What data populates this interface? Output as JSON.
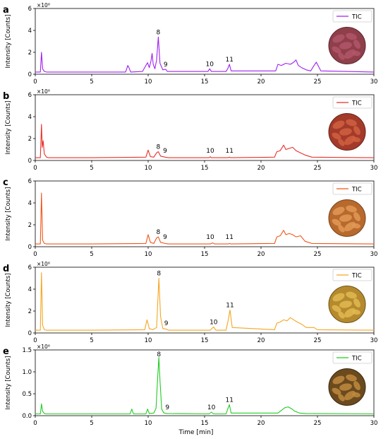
{
  "figure": {
    "xlabel": "Time [min]",
    "ylabel": "Intensity [Counts]"
  },
  "chart_data": [
    {
      "panel": "a",
      "type": "line",
      "legend": "TIC",
      "color": "#a020f0",
      "scale_label": "×10⁶",
      "ylim": [
        0,
        6
      ],
      "yticks": [
        0,
        2,
        4,
        6
      ],
      "xlim": [
        0,
        30
      ],
      "xticks": [
        0,
        5,
        10,
        15,
        20,
        25,
        30
      ],
      "baseline": 0.2,
      "grid": false,
      "legend_position": "top-right",
      "x": [
        0.0,
        0.45,
        0.55,
        0.65,
        0.8,
        1.0,
        5.0,
        8.0,
        8.2,
        8.3,
        8.45,
        9.5,
        9.8,
        9.95,
        10.1,
        10.25,
        10.35,
        10.45,
        10.6,
        10.75,
        10.9,
        11.05,
        11.3,
        11.55,
        11.7,
        15.3,
        15.45,
        15.6,
        16.9,
        17.05,
        17.2,
        17.35,
        21.3,
        21.5,
        21.8,
        22.2,
        22.6,
        22.9,
        23.1,
        23.3,
        23.6,
        24.0,
        24.4,
        24.7,
        24.9,
        25.3,
        30.0
      ],
      "values": [
        0.2,
        0.2,
        2.0,
        0.5,
        0.25,
        0.2,
        0.2,
        0.2,
        0.8,
        0.6,
        0.2,
        0.25,
        0.8,
        1.05,
        0.6,
        1.2,
        1.9,
        0.9,
        0.5,
        1.3,
        3.4,
        1.0,
        0.4,
        0.45,
        0.25,
        0.25,
        0.5,
        0.25,
        0.25,
        0.5,
        0.9,
        0.3,
        0.3,
        0.9,
        0.8,
        1.0,
        0.9,
        1.1,
        1.3,
        0.8,
        0.6,
        0.4,
        0.3,
        0.8,
        1.1,
        0.3,
        0.2
      ],
      "annotations": [
        {
          "label": "8",
          "x": 10.9,
          "y": 3.4
        },
        {
          "label": "9",
          "x": 11.55,
          "y": 0.45
        },
        {
          "label": "10",
          "x": 15.45,
          "y": 0.5
        },
        {
          "label": "11",
          "x": 17.2,
          "y": 0.9
        }
      ],
      "photo": {
        "fill": "#8f3f4a",
        "item": "#b2566a",
        "rim": "#5b2530"
      }
    },
    {
      "panel": "b",
      "type": "line",
      "legend": "TIC",
      "color": "#e8302a",
      "scale_label": "×10⁶",
      "ylim": [
        0,
        6
      ],
      "yticks": [
        0,
        2,
        4,
        6
      ],
      "xlim": [
        0,
        30
      ],
      "xticks": [
        0,
        5,
        10,
        15,
        20,
        25,
        30
      ],
      "baseline": 0.25,
      "grid": false,
      "legend_position": "top-right",
      "x": [
        0.0,
        0.45,
        0.55,
        0.62,
        0.7,
        0.8,
        1.0,
        1.2,
        5.0,
        9.8,
        10.0,
        10.2,
        10.5,
        10.75,
        10.9,
        11.1,
        11.5,
        11.8,
        15.4,
        15.5,
        15.6,
        17.1,
        17.2,
        17.3,
        21.2,
        21.4,
        21.7,
        22.0,
        22.2,
        22.5,
        22.8,
        23.1,
        23.5,
        23.9,
        24.5,
        30.0
      ],
      "values": [
        0.25,
        0.25,
        3.3,
        1.2,
        1.8,
        0.6,
        0.3,
        0.25,
        0.25,
        0.3,
        0.95,
        0.35,
        0.3,
        0.7,
        0.8,
        0.4,
        0.3,
        0.25,
        0.25,
        0.35,
        0.25,
        0.25,
        0.3,
        0.25,
        0.3,
        0.8,
        0.9,
        1.4,
        1.0,
        1.1,
        1.2,
        0.9,
        0.7,
        0.5,
        0.3,
        0.25
      ],
      "annotations": [
        {
          "label": "8",
          "x": 10.9,
          "y": 0.8
        },
        {
          "label": "9",
          "x": 11.5,
          "y": 0.45
        },
        {
          "label": "10",
          "x": 15.5,
          "y": 0.45
        },
        {
          "label": "11",
          "x": 17.2,
          "y": 0.45
        }
      ],
      "photo": {
        "fill": "#a33a2a",
        "item": "#d0603f",
        "rim": "#6a2418"
      }
    },
    {
      "panel": "c",
      "type": "line",
      "legend": "TIC",
      "color": "#f0561a",
      "scale_label": "",
      "ylim": [
        0,
        6
      ],
      "yticks": [
        0,
        2,
        4,
        6
      ],
      "xlim": [
        0,
        30
      ],
      "xticks": [
        0,
        5,
        10,
        15,
        20,
        25,
        30
      ],
      "baseline": 0.25,
      "grid": false,
      "legend_position": "top-right",
      "x": [
        0.0,
        0.45,
        0.55,
        0.65,
        0.8,
        1.0,
        5.0,
        9.8,
        10.0,
        10.2,
        10.5,
        10.75,
        10.9,
        11.1,
        11.5,
        11.8,
        15.5,
        15.7,
        15.9,
        17.1,
        17.2,
        17.3,
        21.2,
        21.4,
        21.7,
        22.0,
        22.2,
        22.5,
        22.8,
        23.1,
        23.5,
        23.9,
        24.5,
        30.0
      ],
      "values": [
        0.25,
        0.25,
        4.9,
        0.6,
        0.3,
        0.25,
        0.25,
        0.3,
        1.1,
        0.4,
        0.3,
        0.8,
        0.9,
        0.4,
        0.3,
        0.25,
        0.25,
        0.35,
        0.25,
        0.25,
        0.3,
        0.25,
        0.3,
        0.9,
        1.0,
        1.5,
        1.1,
        1.2,
        1.1,
        0.9,
        1.0,
        0.5,
        0.3,
        0.25
      ],
      "annotations": [
        {
          "label": "8",
          "x": 10.9,
          "y": 0.9
        },
        {
          "label": "9",
          "x": 11.5,
          "y": 0.45
        },
        {
          "label": "10",
          "x": 15.5,
          "y": 0.45
        },
        {
          "label": "11",
          "x": 17.2,
          "y": 0.45
        }
      ],
      "photo": {
        "fill": "#b8692e",
        "item": "#e09a55",
        "rim": "#7a4318"
      }
    },
    {
      "panel": "d",
      "type": "line",
      "legend": "TIC",
      "color": "#f5a623",
      "scale_label": "×10⁶",
      "ylim": [
        0,
        6
      ],
      "yticks": [
        0,
        2,
        4,
        6
      ],
      "xlim": [
        0,
        30
      ],
      "xticks": [
        0,
        5,
        10,
        15,
        20,
        25,
        30
      ],
      "baseline": 0.25,
      "grid": false,
      "legend_position": "top-right",
      "x": [
        0.0,
        0.45,
        0.55,
        0.65,
        0.8,
        1.0,
        5.0,
        9.7,
        9.9,
        10.1,
        10.4,
        10.75,
        10.95,
        11.1,
        11.3,
        11.6,
        11.8,
        15.5,
        15.8,
        16.0,
        16.9,
        17.1,
        17.25,
        17.45,
        21.2,
        21.4,
        21.7,
        22.0,
        22.3,
        22.6,
        22.9,
        23.2,
        23.6,
        24.0,
        24.7,
        25.0,
        30.0
      ],
      "values": [
        0.25,
        0.25,
        5.5,
        0.7,
        0.3,
        0.25,
        0.25,
        0.3,
        1.2,
        0.4,
        0.3,
        0.5,
        5.0,
        1.5,
        0.4,
        0.35,
        0.25,
        0.25,
        0.55,
        0.25,
        0.25,
        1.2,
        2.1,
        0.5,
        0.3,
        0.9,
        1.0,
        1.2,
        1.1,
        1.4,
        1.2,
        1.0,
        0.8,
        0.5,
        0.5,
        0.3,
        0.25
      ],
      "annotations": [
        {
          "label": "8",
          "x": 10.95,
          "y": 5.0
        },
        {
          "label": "9",
          "x": 11.6,
          "y": 0.45
        },
        {
          "label": "10",
          "x": 15.8,
          "y": 0.55
        },
        {
          "label": "11",
          "x": 17.25,
          "y": 2.1
        }
      ],
      "photo": {
        "fill": "#b58a2e",
        "item": "#e0b850",
        "rim": "#6e5214"
      }
    },
    {
      "panel": "e",
      "type": "line",
      "legend": "TIC",
      "color": "#22cc22",
      "scale_label": "×10⁶",
      "ylim": [
        0,
        1.5
      ],
      "yticks": [
        0.0,
        0.5,
        1.0,
        1.5
      ],
      "xlim": [
        0,
        30
      ],
      "xticks": [
        0,
        5,
        10,
        15,
        20,
        25,
        30
      ],
      "baseline": 0.04,
      "grid": false,
      "legend_position": "top-right",
      "x": [
        0.0,
        0.45,
        0.55,
        0.65,
        0.8,
        1.0,
        5.0,
        8.4,
        8.55,
        8.7,
        9.8,
        9.95,
        10.1,
        10.5,
        10.7,
        10.85,
        10.95,
        11.05,
        11.2,
        11.4,
        11.7,
        15.4,
        15.6,
        15.8,
        16.9,
        17.05,
        17.2,
        17.35,
        21.5,
        21.8,
        22.1,
        22.4,
        22.7,
        23.0,
        23.4,
        24.0,
        30.0
      ],
      "values": [
        0.04,
        0.04,
        0.27,
        0.1,
        0.05,
        0.04,
        0.04,
        0.04,
        0.15,
        0.04,
        0.04,
        0.15,
        0.05,
        0.06,
        0.17,
        0.9,
        1.33,
        0.8,
        0.15,
        0.06,
        0.05,
        0.04,
        0.08,
        0.04,
        0.04,
        0.15,
        0.25,
        0.06,
        0.06,
        0.12,
        0.18,
        0.2,
        0.16,
        0.1,
        0.06,
        0.05,
        0.04
      ],
      "annotations": [
        {
          "label": "8",
          "x": 10.95,
          "y": 1.33
        },
        {
          "label": "9",
          "x": 11.7,
          "y": 0.08
        },
        {
          "label": "10",
          "x": 15.6,
          "y": 0.08
        },
        {
          "label": "11",
          "x": 17.2,
          "y": 0.25
        }
      ],
      "photo": {
        "fill": "#6b4a1e",
        "item": "#c08a3e",
        "rim": "#3a2a10"
      }
    }
  ]
}
